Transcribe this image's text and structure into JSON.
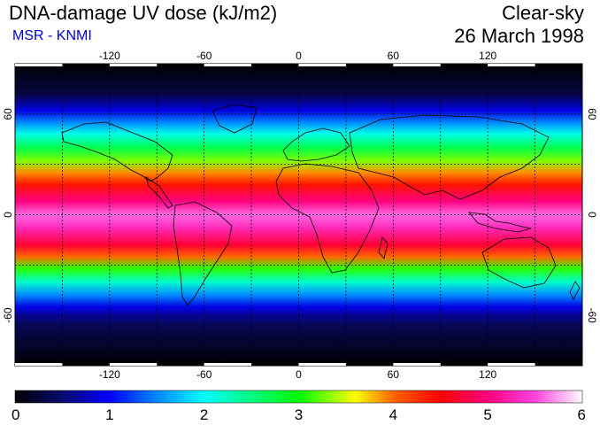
{
  "header": {
    "title": "DNA-damage UV dose (kJ/m2)",
    "subtitle": "MSR - KNMI",
    "condition": "Clear-sky",
    "date": "26 March 1998"
  },
  "map": {
    "projection": "equirectangular",
    "lon_range": [
      -180,
      180
    ],
    "lat_range": [
      -90,
      90
    ],
    "lon_ticks": [
      -120,
      -60,
      0,
      60,
      120
    ],
    "lat_ticks": [
      60,
      0,
      -60
    ],
    "graticule_lon": [
      -150,
      -120,
      -90,
      -60,
      -30,
      0,
      30,
      60,
      90,
      120,
      150
    ],
    "graticule_lat": [
      60,
      30,
      0,
      -30,
      -60
    ],
    "colors": {
      "ocean_background": "#000000",
      "coastline": "#000000",
      "graticule": "#000000"
    }
  },
  "colorbar": {
    "min": 0,
    "max": 6,
    "labels": [
      "0",
      "1",
      "2",
      "3",
      "4",
      "5",
      "6"
    ],
    "stops": [
      {
        "value": 0,
        "color": "#000000"
      },
      {
        "value": 0.5,
        "color": "#0a0a6e"
      },
      {
        "value": 1,
        "color": "#0000ff"
      },
      {
        "value": 1.5,
        "color": "#0088ff"
      },
      {
        "value": 2,
        "color": "#00ffff"
      },
      {
        "value": 2.5,
        "color": "#00ff80"
      },
      {
        "value": 3,
        "color": "#00ff00"
      },
      {
        "value": 3.4,
        "color": "#aaff00"
      },
      {
        "value": 3.6,
        "color": "#ffff00"
      },
      {
        "value": 4,
        "color": "#ff6600"
      },
      {
        "value": 4.5,
        "color": "#ff0000"
      },
      {
        "value": 5,
        "color": "#ff0080"
      },
      {
        "value": 5.5,
        "color": "#ff44dd"
      },
      {
        "value": 6,
        "color": "#ffffff"
      }
    ]
  }
}
